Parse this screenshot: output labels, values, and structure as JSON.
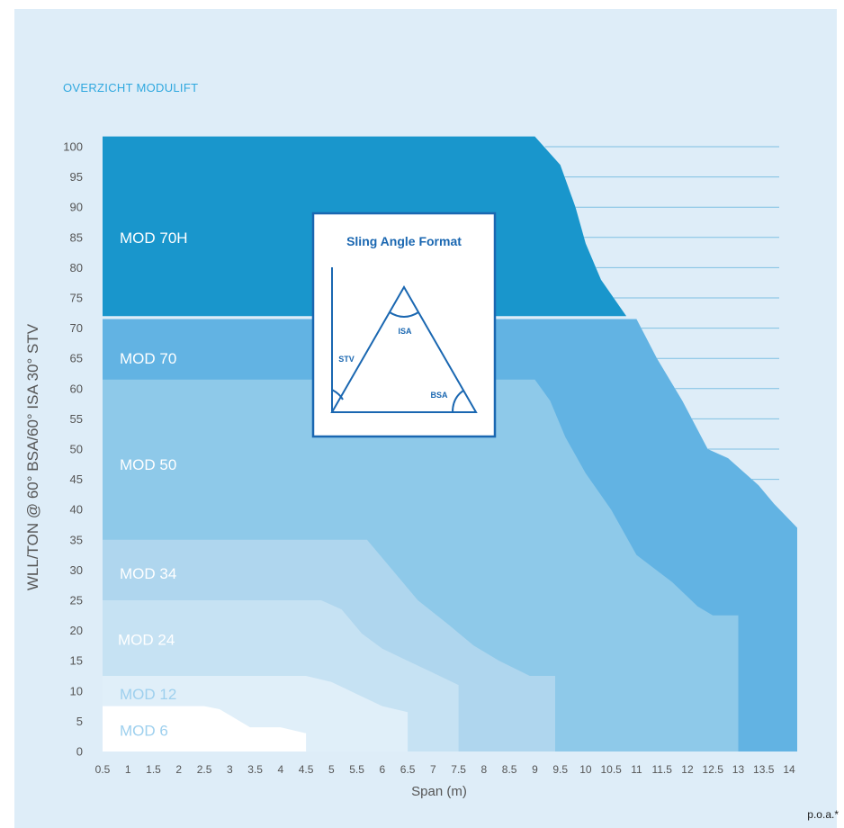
{
  "header": {
    "title": "OVERZICHT MODULIFT"
  },
  "footnote": "p.o.a.*",
  "inset": {
    "title": "Sling Angle Format",
    "labels": {
      "isa": "ISA",
      "stv": "STV",
      "bsa": "BSA"
    }
  },
  "colors": {
    "background": "#deedf8",
    "mod70h": "#1996cc",
    "mod70": "#62b3e3",
    "mod50": "#8ec9e9",
    "mod34": "#afd6ee",
    "mod24": "#c6e2f3",
    "mod12": "#e0eff9",
    "mod6": "#ffffff",
    "header": "#2fa8df",
    "inset_border": "#1a67b1"
  },
  "chart_data": {
    "type": "area",
    "title": "",
    "xlabel": "Span (m)",
    "ylabel": "WLL/TON @ 60° BSA/60° ISA 30° STV",
    "xlim": [
      0.5,
      14
    ],
    "ylim": [
      0,
      100
    ],
    "x_ticks": [
      "0.5",
      "1",
      "1.5",
      "2",
      "2.5",
      "3",
      "3.5",
      "4",
      "4.5",
      "5",
      "5.5",
      "6",
      "6.5",
      "7",
      "7.5",
      "8",
      "8.5",
      "9",
      "9.5",
      "10",
      "10.5",
      "11",
      "11.5",
      "12",
      "12.5",
      "13",
      "13.5",
      "14"
    ],
    "y_ticks": [
      "0",
      "5",
      "10",
      "15",
      "20",
      "25",
      "30",
      "35",
      "40",
      "45",
      "50",
      "55",
      "60",
      "65",
      "70",
      "75",
      "80",
      "85",
      "90",
      "95",
      "100"
    ],
    "grid": "horizontal lines right of curves",
    "series": [
      {
        "name": "MOD 70H",
        "points": [
          [
            0.5,
            102
          ],
          [
            9,
            102
          ],
          [
            9.5,
            97
          ],
          [
            9.8,
            90
          ],
          [
            10,
            84
          ],
          [
            10.3,
            78
          ],
          [
            10.8,
            72
          ],
          [
            11,
            72
          ],
          [
            11,
            72
          ],
          [
            0.5,
            72
          ]
        ]
      },
      {
        "name": "MOD 70",
        "points": [
          [
            0.5,
            71.5
          ],
          [
            11,
            71.5
          ],
          [
            11.4,
            65
          ],
          [
            11.9,
            58
          ],
          [
            12.4,
            50
          ],
          [
            12.8,
            48.5
          ],
          [
            13.4,
            44
          ],
          [
            13.7,
            41
          ],
          [
            14.2,
            37
          ],
          [
            14.2,
            0
          ],
          [
            0.5,
            0
          ]
        ]
      },
      {
        "name": "MOD 50",
        "points": [
          [
            0.5,
            61.5
          ],
          [
            9,
            61.5
          ],
          [
            9.3,
            58
          ],
          [
            9.6,
            52
          ],
          [
            10,
            46
          ],
          [
            10.5,
            40
          ],
          [
            11,
            32.5
          ],
          [
            11.7,
            28
          ],
          [
            12.2,
            24
          ],
          [
            12.5,
            22.5
          ],
          [
            13,
            22.5
          ],
          [
            13,
            0
          ],
          [
            0.5,
            0
          ]
        ]
      },
      {
        "name": "MOD 34",
        "points": [
          [
            0.5,
            35
          ],
          [
            5.7,
            35
          ],
          [
            6.2,
            30
          ],
          [
            6.7,
            25
          ],
          [
            7.3,
            21
          ],
          [
            7.8,
            17.5
          ],
          [
            8.3,
            15
          ],
          [
            8.9,
            12.5
          ],
          [
            9.4,
            12.5
          ],
          [
            9.4,
            0
          ],
          [
            0.5,
            0
          ]
        ]
      },
      {
        "name": "MOD 24",
        "points": [
          [
            0.5,
            25
          ],
          [
            4.8,
            25
          ],
          [
            5.2,
            23.5
          ],
          [
            5.6,
            19.5
          ],
          [
            6,
            17
          ],
          [
            6.5,
            15
          ],
          [
            7,
            13
          ],
          [
            7.5,
            11
          ],
          [
            7.5,
            0
          ],
          [
            0.5,
            0
          ]
        ]
      },
      {
        "name": "MOD 12",
        "points": [
          [
            0.5,
            12.5
          ],
          [
            4.5,
            12.5
          ],
          [
            5,
            11.5
          ],
          [
            5.5,
            9.5
          ],
          [
            6,
            7.5
          ],
          [
            6.5,
            6.5
          ],
          [
            6.5,
            0
          ],
          [
            0.5,
            0
          ]
        ]
      },
      {
        "name": "MOD 6",
        "points": [
          [
            0.5,
            7.5
          ],
          [
            2.5,
            7.5
          ],
          [
            2.8,
            7
          ],
          [
            3.1,
            5.5
          ],
          [
            3.4,
            4
          ],
          [
            4,
            4
          ],
          [
            4.5,
            3
          ],
          [
            4.5,
            0
          ],
          [
            0.5,
            0
          ]
        ]
      }
    ],
    "series_label_values": {
      "MOD 70H": 85,
      "MOD 70": 65,
      "MOD 50": 47.5,
      "MOD 34": 29.5,
      "MOD 24": 18.5,
      "MOD 12": 9.5,
      "MOD 6": 3.5
    }
  }
}
